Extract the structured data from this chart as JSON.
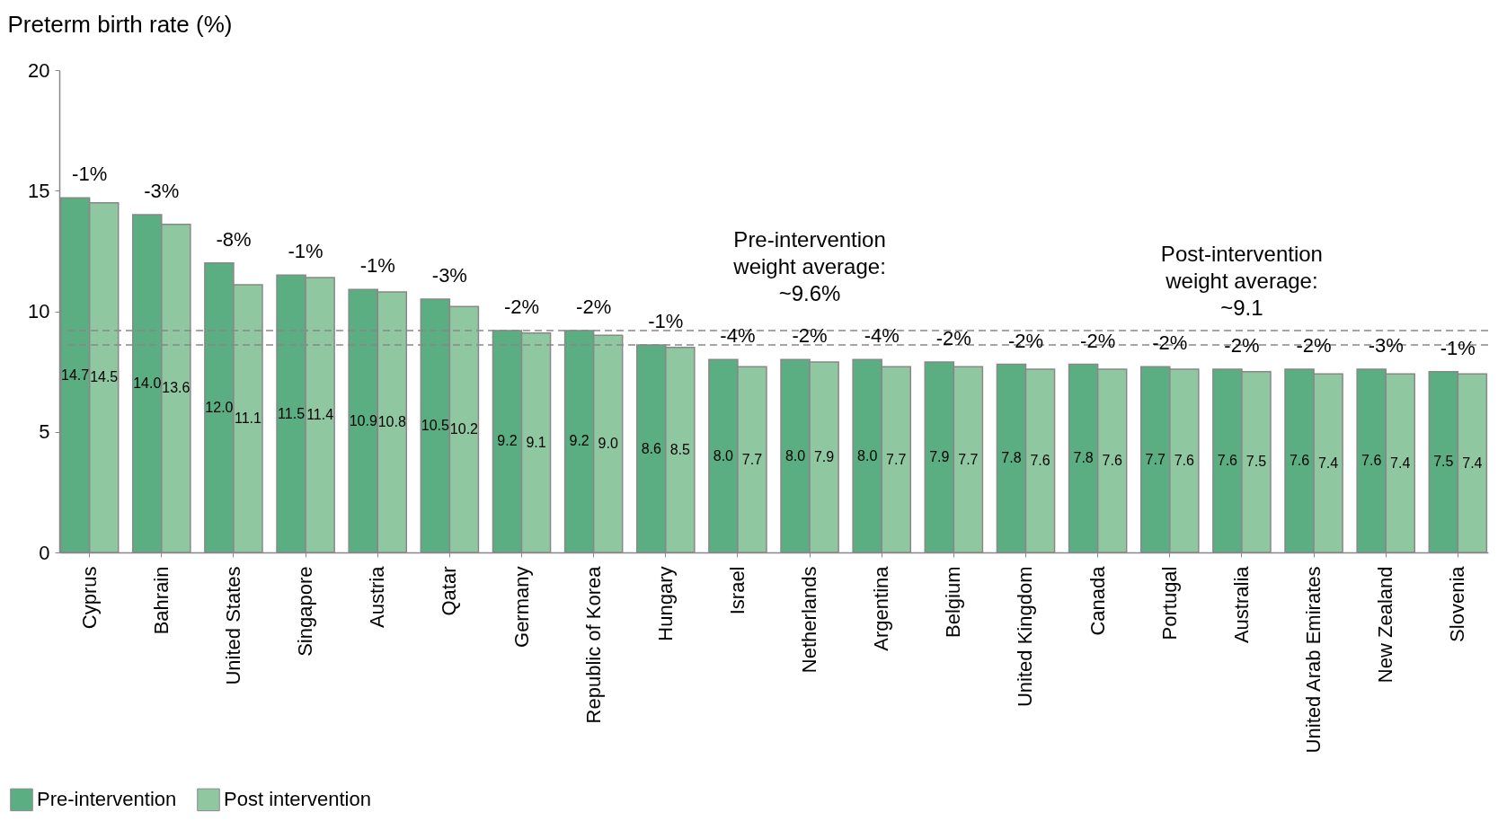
{
  "chart_data": {
    "type": "bar",
    "ylabel": "Preterm birth rate (%)",
    "categories": [
      "Cyprus",
      "Bahrain",
      "United States",
      "Singapore",
      "Austria",
      "Qatar",
      "Germany",
      "Republic of Korea",
      "Hungary",
      "Israel",
      "Netherlands",
      "Argentina",
      "Belgium",
      "United Kingdom",
      "Canada",
      "Portugal",
      "Australia",
      "United Arab Emirates",
      "New Zealand",
      "Slovenia"
    ],
    "series": [
      {
        "name": "Pre-intervention",
        "color": "#5bae82",
        "values": [
          14.7,
          14.0,
          12.0,
          11.5,
          10.9,
          10.5,
          9.2,
          9.2,
          8.6,
          8.0,
          8.0,
          8.0,
          7.9,
          7.8,
          7.8,
          7.7,
          7.6,
          7.6,
          7.6,
          7.5
        ],
        "value_labels": [
          "14.7",
          "14.0",
          "12.0",
          "11.5",
          "10.9",
          "10.5",
          "9.2",
          "9.2",
          "8.6",
          "8.0",
          "8.0",
          "8.0",
          "7.9",
          "7.8",
          "7.8",
          "7.7",
          "7.6",
          "7.6",
          "7.6",
          "7.5"
        ]
      },
      {
        "name": "Post intervention",
        "color": "#8fc8a0",
        "values": [
          14.5,
          13.6,
          11.1,
          11.4,
          10.8,
          10.2,
          9.1,
          9.0,
          8.5,
          7.7,
          7.9,
          7.7,
          7.7,
          7.6,
          7.6,
          7.6,
          7.5,
          7.4,
          7.4,
          7.4
        ],
        "value_labels": [
          "14.5",
          "13.6",
          "11.1",
          "11.4",
          "10.8",
          "10.2",
          "9.1",
          "9.0",
          "8.5",
          "7.7",
          "7.9",
          "7.7",
          "7.7",
          "7.6",
          "7.6",
          "7.6",
          "7.5",
          "7.4",
          "7.4",
          "7.4"
        ]
      }
    ],
    "ylim": [
      0,
      20
    ],
    "yticks": [
      0,
      5,
      10,
      15,
      20
    ],
    "grid": false,
    "legend": "bottom left",
    "ref_lines": [
      {
        "axis": "y",
        "value": 9.2,
        "label": "Pre-intervention\nweight average:\n~9.6%",
        "color": "#888888",
        "line_style": "dashed"
      },
      {
        "axis": "y",
        "value": 8.6,
        "label": "Post-intervention\nweight average:\n~9.1",
        "color": "#888888",
        "line_style": "dashed"
      }
    ],
    "annotations": [
      {
        "text": "-1%",
        "x": "Cyprus",
        "y": 14.7
      },
      {
        "text": "-3%",
        "x": "Bahrain",
        "y": 14.0
      },
      {
        "text": "-8%",
        "x": "United States",
        "y": 12.0
      },
      {
        "text": "-1%",
        "x": "Singapore",
        "y": 11.5
      },
      {
        "text": "-1%",
        "x": "Austria",
        "y": 10.9
      },
      {
        "text": "-3%",
        "x": "Qatar",
        "y": 10.5
      },
      {
        "text": "-2%",
        "x": "Germany",
        "y": 9.2
      },
      {
        "text": "-2%",
        "x": "Republic of Korea",
        "y": 9.2
      },
      {
        "text": "-1%",
        "x": "Hungary",
        "y": 8.6
      },
      {
        "text": "-4%",
        "x": "Israel",
        "y": 8.0
      },
      {
        "text": "-2%",
        "x": "Netherlands",
        "y": 8.0
      },
      {
        "text": "-4%",
        "x": "Argentina",
        "y": 8.0
      },
      {
        "text": "-2%",
        "x": "Belgium",
        "y": 7.9
      },
      {
        "text": "-2%",
        "x": "United Kingdom",
        "y": 7.8
      },
      {
        "text": "-2%",
        "x": "Canada",
        "y": 7.8
      },
      {
        "text": "-2%",
        "x": "Portugal",
        "y": 7.7
      },
      {
        "text": "-2%",
        "x": "Australia",
        "y": 7.6
      },
      {
        "text": "-2%",
        "x": "United Arab Emirates",
        "y": 7.6
      },
      {
        "text": "-3%",
        "x": "New Zealand",
        "y": 7.6
      },
      {
        "text": "-1%",
        "x": "Slovenia",
        "y": 7.5
      }
    ]
  }
}
